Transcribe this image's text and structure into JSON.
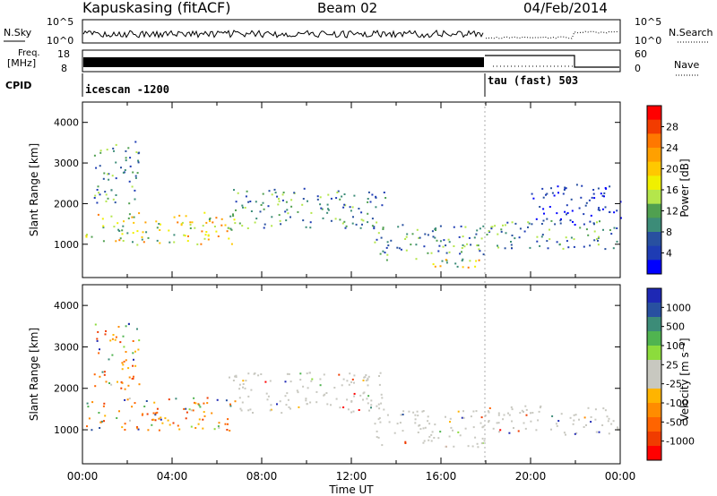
{
  "header": {
    "station": "Kapuskasing (fitACF)",
    "beam": "Beam 02",
    "date": "04/Feb/2014"
  },
  "info_panels": {
    "nsky": {
      "label": "N.Sky",
      "tick_top": "10^5",
      "tick_bottom": "10^0"
    },
    "nsearch": {
      "label": "N.Search",
      "tick_top": "10^5",
      "tick_bottom": "10^0"
    },
    "freq": {
      "label_line1": "Freq.",
      "label_line2": "[MHz]",
      "tick_top": "18",
      "tick_bottom": "8"
    },
    "nave": {
      "label": "Nave",
      "tick_top": "60",
      "tick_bottom": "0"
    },
    "cpid": {
      "label": "CPID",
      "mode1": "icescan -1200",
      "mode2": "tau (fast) 503"
    }
  },
  "chart_data": [
    {
      "type": "heatmap",
      "name": "power",
      "ylabel": "Slant Range [km]",
      "xlabel": "",
      "ylim": [
        180,
        4500
      ],
      "xlim": [
        0,
        24
      ],
      "yticks": [
        "1000",
        "2000",
        "3000",
        "4000"
      ],
      "colorbar": {
        "label": "Power [dB]",
        "ticks": [
          "28",
          "24",
          "20",
          "16",
          "12",
          "8",
          "4"
        ],
        "colors": [
          "#ff0000",
          "#f23c00",
          "#ff7800",
          "#ffa000",
          "#ffc800",
          "#f0f000",
          "#b4e64b",
          "#50a050",
          "#3c8c78",
          "#2850a0",
          "#1e3cb4",
          "#0000ff"
        ]
      },
      "scatter_regions": [
        {
          "t": [
            0.1,
            6.8
          ],
          "r": [
            1000,
            1800
          ],
          "level": "high"
        },
        {
          "t": [
            0.5,
            2.5
          ],
          "r": [
            2000,
            3600
          ],
          "level": "mid"
        },
        {
          "t": [
            6.5,
            13.5
          ],
          "r": [
            1400,
            2400
          ],
          "level": "mid"
        },
        {
          "t": [
            13.0,
            18.0
          ],
          "r": [
            600,
            1500
          ],
          "level": "mid"
        },
        {
          "t": [
            15.5,
            18.0
          ],
          "r": [
            350,
            650
          ],
          "level": "high"
        },
        {
          "t": [
            18.0,
            24.0
          ],
          "r": [
            900,
            1600
          ],
          "level": "mid"
        },
        {
          "t": [
            20.0,
            24.0
          ],
          "r": [
            1500,
            2500
          ],
          "level": "low"
        }
      ]
    },
    {
      "type": "heatmap",
      "name": "velocity",
      "ylabel": "Slant Range [km]",
      "xlabel": "Time UT",
      "ylim": [
        180,
        4500
      ],
      "xlim": [
        0,
        24
      ],
      "yticks": [
        "1000",
        "2000",
        "3000",
        "4000"
      ],
      "xticks": [
        "00:00",
        "04:00",
        "08:00",
        "12:00",
        "16:00",
        "20:00",
        "00:00"
      ],
      "colorbar": {
        "label": "Velocity [m s⁻¹]",
        "ticks": [
          "1000",
          "500",
          "100",
          "25",
          "-25",
          "-100",
          "-500",
          "-1000"
        ],
        "colors": [
          "#1e28b4",
          "#2850a0",
          "#3c8c78",
          "#50b450",
          "#8cdc3c",
          "#c8c8c0",
          "#c8c8c0",
          "#ffb400",
          "#ff8c00",
          "#ff6400",
          "#f03c00",
          "#ff0000"
        ]
      },
      "scatter_regions": [
        {
          "t": [
            0.1,
            6.8
          ],
          "r": [
            1000,
            1800
          ],
          "level": "neg"
        },
        {
          "t": [
            0.5,
            2.5
          ],
          "r": [
            2000,
            3600
          ],
          "level": "neg"
        },
        {
          "t": [
            6.5,
            13.5
          ],
          "r": [
            1400,
            2400
          ],
          "level": "gray"
        },
        {
          "t": [
            13.0,
            18.0
          ],
          "r": [
            600,
            1500
          ],
          "level": "gray"
        },
        {
          "t": [
            18.0,
            24.0
          ],
          "r": [
            900,
            1600
          ],
          "level": "gray"
        }
      ]
    }
  ]
}
